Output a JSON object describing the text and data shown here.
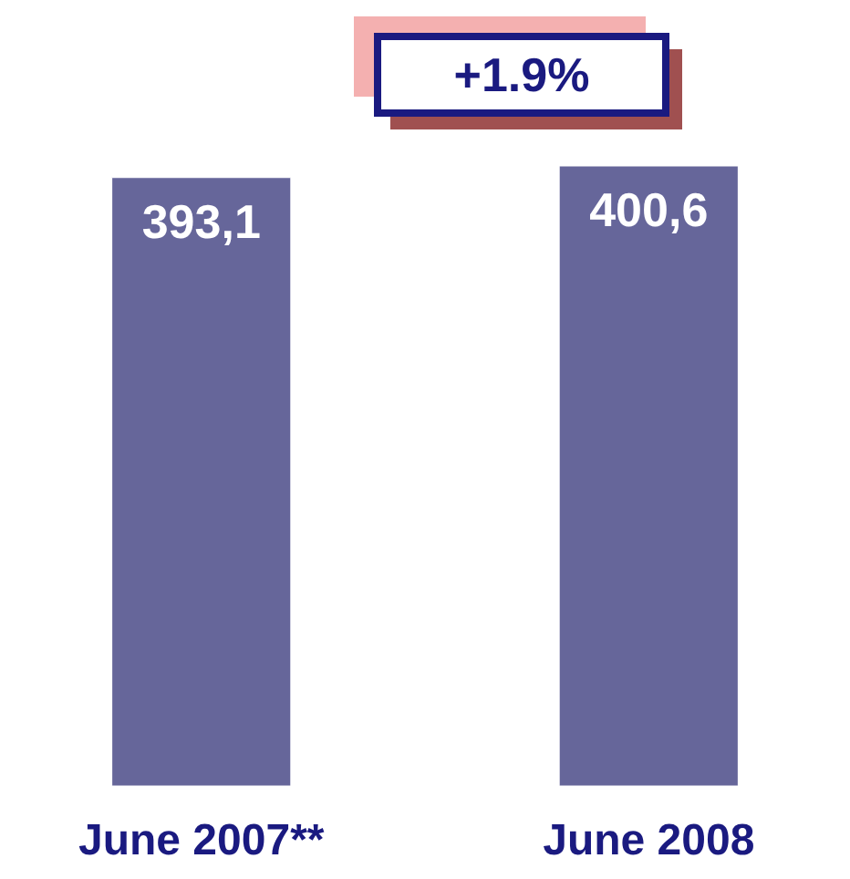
{
  "chart_data": {
    "type": "bar",
    "categories": [
      "June 2007**",
      "June 2008"
    ],
    "values": [
      393.1,
      400.6
    ],
    "value_labels": [
      "393,1",
      "400,6"
    ],
    "color": "#66669a",
    "annotations": [
      "+1.9%"
    ]
  }
}
